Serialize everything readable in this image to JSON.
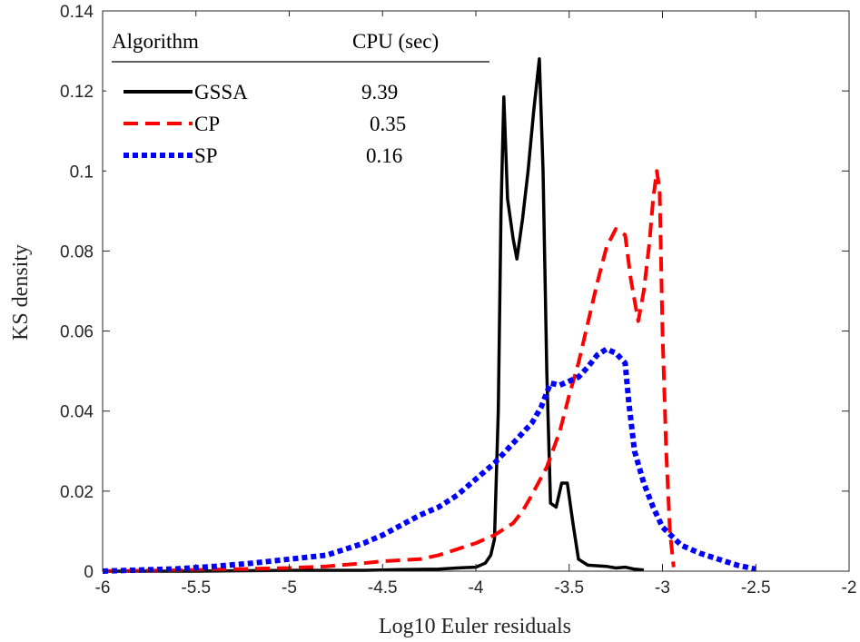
{
  "chart_data": {
    "type": "line",
    "xlabel": "Log10 Euler residuals",
    "ylabel": "KS density",
    "xlim": [
      -6,
      -2
    ],
    "ylim": [
      0,
      0.14
    ],
    "xticks": [
      "-6",
      "-5.5",
      "-5",
      "-4.5",
      "-4",
      "-3.5",
      "-3",
      "-2.5",
      "-2"
    ],
    "yticks": [
      "0",
      "0.02",
      "0.04",
      "0.06",
      "0.08",
      "0.1",
      "0.12",
      "0.14"
    ],
    "grid": false,
    "legend": {
      "placement": "top-left",
      "header_left": "Algorithm",
      "header_right": "CPU (sec)",
      "entries": [
        {
          "label": "GSSA",
          "cpu": "9.39"
        },
        {
          "label": "CP",
          "cpu": "0.35"
        },
        {
          "label": "SP",
          "cpu": "0.16"
        }
      ]
    },
    "series": [
      {
        "name": "GSSA",
        "color": "#000000",
        "style": "solid",
        "points": [
          [
            -6.0,
            0.0
          ],
          [
            -5.5,
            0.0
          ],
          [
            -5.0,
            0.0002
          ],
          [
            -4.6,
            0.0002
          ],
          [
            -4.4,
            0.0004
          ],
          [
            -4.2,
            0.0005
          ],
          [
            -4.1,
            0.0008
          ],
          [
            -4.0,
            0.001
          ],
          [
            -3.95,
            0.002
          ],
          [
            -3.92,
            0.004
          ],
          [
            -3.9,
            0.008
          ],
          [
            -3.88,
            0.04
          ],
          [
            -3.865,
            0.09
          ],
          [
            -3.85,
            0.1185
          ],
          [
            -3.83,
            0.093
          ],
          [
            -3.8,
            0.083
          ],
          [
            -3.78,
            0.078
          ],
          [
            -3.75,
            0.088
          ],
          [
            -3.72,
            0.1
          ],
          [
            -3.69,
            0.115
          ],
          [
            -3.66,
            0.128
          ],
          [
            -3.64,
            0.1
          ],
          [
            -3.62,
            0.05
          ],
          [
            -3.6,
            0.017
          ],
          [
            -3.57,
            0.016
          ],
          [
            -3.54,
            0.022
          ],
          [
            -3.51,
            0.022
          ],
          [
            -3.48,
            0.012
          ],
          [
            -3.45,
            0.003
          ],
          [
            -3.4,
            0.0015
          ],
          [
            -3.3,
            0.0012
          ],
          [
            -3.25,
            0.0008
          ],
          [
            -3.2,
            0.001
          ],
          [
            -3.15,
            0.0005
          ],
          [
            -3.1,
            0.0003
          ]
        ]
      },
      {
        "name": "CP",
        "color": "#ff0000",
        "style": "dashed",
        "points": [
          [
            -6.0,
            0.0
          ],
          [
            -5.5,
            0.0003
          ],
          [
            -5.0,
            0.0008
          ],
          [
            -4.8,
            0.0012
          ],
          [
            -4.6,
            0.002
          ],
          [
            -4.5,
            0.0025
          ],
          [
            -4.3,
            0.003
          ],
          [
            -4.2,
            0.004
          ],
          [
            -4.1,
            0.0055
          ],
          [
            -4.0,
            0.007
          ],
          [
            -3.9,
            0.009
          ],
          [
            -3.8,
            0.012
          ],
          [
            -3.75,
            0.015
          ],
          [
            -3.7,
            0.019
          ],
          [
            -3.62,
            0.026
          ],
          [
            -3.55,
            0.035
          ],
          [
            -3.5,
            0.044
          ],
          [
            -3.45,
            0.052
          ],
          [
            -3.4,
            0.062
          ],
          [
            -3.35,
            0.072
          ],
          [
            -3.3,
            0.081
          ],
          [
            -3.25,
            0.0855
          ],
          [
            -3.2,
            0.084
          ],
          [
            -3.17,
            0.073
          ],
          [
            -3.13,
            0.0625
          ],
          [
            -3.1,
            0.07
          ],
          [
            -3.07,
            0.082
          ],
          [
            -3.05,
            0.093
          ],
          [
            -3.03,
            0.1
          ],
          [
            -3.015,
            0.095
          ],
          [
            -3.0,
            0.06
          ],
          [
            -2.98,
            0.03
          ],
          [
            -2.96,
            0.01
          ],
          [
            -2.94,
            0.001
          ]
        ]
      },
      {
        "name": "SP",
        "color": "#0000ff",
        "style": "dotted",
        "points": [
          [
            -6.0,
            0.0
          ],
          [
            -5.8,
            0.0003
          ],
          [
            -5.6,
            0.0006
          ],
          [
            -5.4,
            0.0012
          ],
          [
            -5.2,
            0.002
          ],
          [
            -5.0,
            0.003
          ],
          [
            -4.9,
            0.0035
          ],
          [
            -4.8,
            0.004
          ],
          [
            -4.7,
            0.0055
          ],
          [
            -4.6,
            0.007
          ],
          [
            -4.5,
            0.009
          ],
          [
            -4.4,
            0.0115
          ],
          [
            -4.3,
            0.014
          ],
          [
            -4.2,
            0.016
          ],
          [
            -4.1,
            0.019
          ],
          [
            -4.0,
            0.023
          ],
          [
            -3.9,
            0.027
          ],
          [
            -3.8,
            0.032
          ],
          [
            -3.7,
            0.037
          ],
          [
            -3.65,
            0.041
          ],
          [
            -3.6,
            0.047
          ],
          [
            -3.55,
            0.0465
          ],
          [
            -3.5,
            0.0475
          ],
          [
            -3.45,
            0.0485
          ],
          [
            -3.4,
            0.051
          ],
          [
            -3.35,
            0.054
          ],
          [
            -3.3,
            0.0555
          ],
          [
            -3.25,
            0.0545
          ],
          [
            -3.2,
            0.052
          ],
          [
            -3.18,
            0.042
          ],
          [
            -3.15,
            0.03
          ],
          [
            -3.1,
            0.022
          ],
          [
            -3.05,
            0.016
          ],
          [
            -3.0,
            0.011
          ],
          [
            -2.9,
            0.0065
          ],
          [
            -2.8,
            0.0045
          ],
          [
            -2.7,
            0.003
          ],
          [
            -2.6,
            0.0015
          ],
          [
            -2.5,
            0.0005
          ]
        ]
      }
    ]
  }
}
